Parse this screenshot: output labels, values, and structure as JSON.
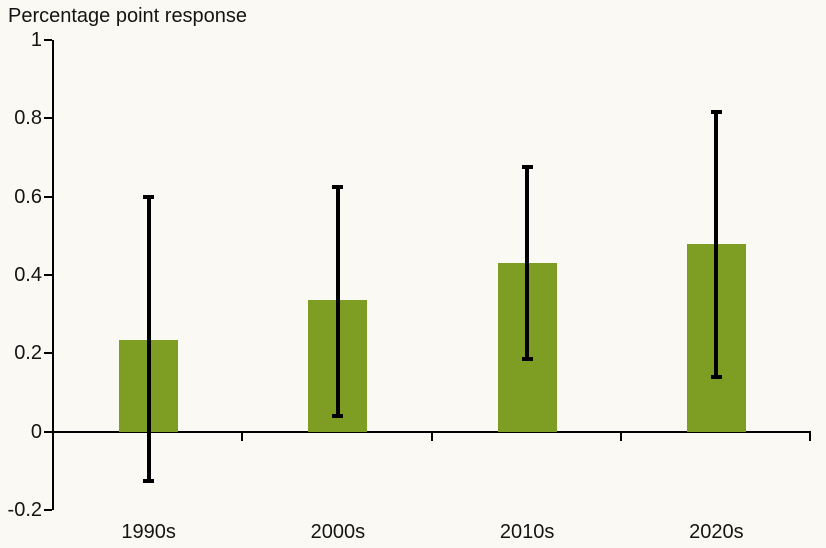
{
  "title": "Percentage point response",
  "colors": {
    "bar": "#7E9E23",
    "background": "#FBF9F3",
    "axis": "#000000",
    "error_bar": "#000000",
    "text": "#141414"
  },
  "chart_data": {
    "type": "bar",
    "title": "Percentage point response",
    "categories": [
      "1990s",
      "2000s",
      "2010s",
      "2020s"
    ],
    "values": [
      0.235,
      0.335,
      0.43,
      0.48
    ],
    "error_low": [
      -0.125,
      0.04,
      0.185,
      0.14
    ],
    "error_high": [
      0.6,
      0.625,
      0.675,
      0.815
    ],
    "xlabel": "",
    "ylabel": "Percentage point response",
    "ylim": [
      -0.2,
      1
    ],
    "yticks": [
      -0.2,
      0,
      0.2,
      0.4,
      0.6,
      0.8,
      1
    ],
    "ytick_labels": [
      "-0.2",
      "0",
      "0.2",
      "0.4",
      "0.6",
      "0.8",
      "1"
    ],
    "grid": false,
    "legend": false
  }
}
